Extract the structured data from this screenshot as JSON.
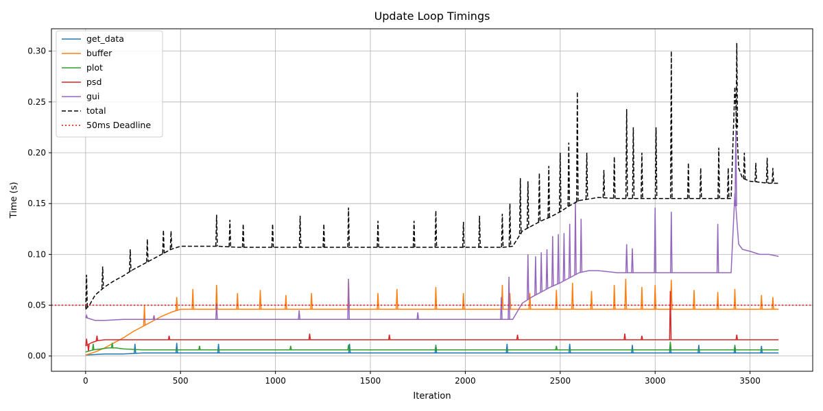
{
  "chart_data": {
    "type": "line",
    "title": "Update Loop Timings",
    "xlabel": "Iteration",
    "ylabel": "Time (s)",
    "xlim": [
      -180,
      3830
    ],
    "ylim": [
      -0.015,
      0.322
    ],
    "xticks": [
      0,
      500,
      1000,
      1500,
      2000,
      2500,
      3000,
      3500
    ],
    "xtick_labels": [
      "0",
      "500",
      "1000",
      "1500",
      "2000",
      "2500",
      "3000",
      "3500"
    ],
    "yticks": [
      0.0,
      0.05,
      0.1,
      0.15,
      0.2,
      0.25,
      0.3
    ],
    "ytick_labels": [
      "0.00",
      "0.05",
      "0.10",
      "0.15",
      "0.20",
      "0.25",
      "0.30"
    ],
    "grid": true,
    "legend_position": "top-left",
    "series": [
      {
        "name": "get_data",
        "color": "#1f77b4",
        "dash": "solid",
        "x": [
          0,
          100,
          200,
          300,
          400,
          500,
          700,
          900,
          1100,
          1300,
          1500,
          1700,
          1900,
          2100,
          2300,
          2500,
          2700,
          2900,
          3100,
          3300,
          3500,
          3650
        ],
        "y": [
          0.001,
          0.002,
          0.002,
          0.003,
          0.003,
          0.003,
          0.003,
          0.003,
          0.003,
          0.003,
          0.003,
          0.003,
          0.003,
          0.003,
          0.003,
          0.003,
          0.003,
          0.003,
          0.003,
          0.003,
          0.003,
          0.003
        ],
        "spikes": [
          [
            260,
            0.012
          ],
          [
            480,
            0.013
          ],
          [
            700,
            0.012
          ],
          [
            1390,
            0.012
          ],
          [
            1845,
            0.011
          ],
          [
            2220,
            0.012
          ],
          [
            2550,
            0.012
          ],
          [
            2880,
            0.011
          ],
          [
            3080,
            0.012
          ],
          [
            3230,
            0.011
          ],
          [
            3420,
            0.011
          ],
          [
            3560,
            0.01
          ]
        ]
      },
      {
        "name": "buffer",
        "color": "#ff7f0e",
        "dash": "solid",
        "x": [
          0,
          50,
          100,
          150,
          200,
          250,
          300,
          350,
          400,
          450,
          500,
          600,
          700,
          800,
          900,
          1000,
          1100,
          1200,
          1300,
          1400,
          1500,
          1600,
          1700,
          1800,
          1900,
          2000,
          2100,
          2200,
          2300,
          2400,
          2500,
          2600,
          2700,
          2800,
          2900,
          3000,
          3100,
          3200,
          3300,
          3400,
          3500,
          3600,
          3650
        ],
        "y": [
          0.001,
          0.004,
          0.008,
          0.013,
          0.018,
          0.024,
          0.029,
          0.034,
          0.039,
          0.043,
          0.046,
          0.046,
          0.046,
          0.046,
          0.046,
          0.046,
          0.046,
          0.046,
          0.046,
          0.046,
          0.046,
          0.046,
          0.046,
          0.046,
          0.046,
          0.046,
          0.046,
          0.046,
          0.046,
          0.046,
          0.046,
          0.046,
          0.046,
          0.046,
          0.046,
          0.046,
          0.046,
          0.046,
          0.046,
          0.046,
          0.046,
          0.046,
          0.046
        ],
        "spikes": [
          [
            310,
            0.05
          ],
          [
            480,
            0.058
          ],
          [
            565,
            0.066
          ],
          [
            690,
            0.07
          ],
          [
            800,
            0.062
          ],
          [
            920,
            0.065
          ],
          [
            1055,
            0.06
          ],
          [
            1190,
            0.062
          ],
          [
            1385,
            0.076
          ],
          [
            1540,
            0.062
          ],
          [
            1640,
            0.066
          ],
          [
            1845,
            0.068
          ],
          [
            1990,
            0.062
          ],
          [
            2195,
            0.07
          ],
          [
            2235,
            0.062
          ],
          [
            2340,
            0.062
          ],
          [
            2480,
            0.065
          ],
          [
            2565,
            0.072
          ],
          [
            2665,
            0.064
          ],
          [
            2785,
            0.07
          ],
          [
            2845,
            0.076
          ],
          [
            2930,
            0.068
          ],
          [
            3000,
            0.07
          ],
          [
            3085,
            0.075
          ],
          [
            3205,
            0.065
          ],
          [
            3330,
            0.063
          ],
          [
            3420,
            0.066
          ],
          [
            3560,
            0.06
          ],
          [
            3620,
            0.058
          ]
        ]
      },
      {
        "name": "plot",
        "color": "#2ca02c",
        "dash": "solid",
        "x": [
          0,
          40,
          80,
          120,
          160,
          200,
          300,
          400,
          600,
          800,
          1000,
          1200,
          1400,
          1600,
          1800,
          2000,
          2200,
          2400,
          2600,
          2800,
          3000,
          3200,
          3400,
          3650
        ],
        "y": [
          0.004,
          0.006,
          0.007,
          0.008,
          0.008,
          0.007,
          0.006,
          0.006,
          0.006,
          0.006,
          0.006,
          0.006,
          0.006,
          0.006,
          0.006,
          0.006,
          0.006,
          0.006,
          0.006,
          0.006,
          0.006,
          0.006,
          0.006,
          0.006
        ],
        "spikes": [
          [
            40,
            0.012
          ],
          [
            140,
            0.013
          ],
          [
            600,
            0.01
          ],
          [
            1080,
            0.01
          ],
          [
            1385,
            0.011
          ],
          [
            1845,
            0.01
          ],
          [
            2480,
            0.01
          ],
          [
            3080,
            0.014
          ],
          [
            3420,
            0.01
          ]
        ]
      },
      {
        "name": "psd",
        "color": "#d62728",
        "dash": "solid",
        "x": [
          0,
          30,
          60,
          100,
          150,
          200,
          400,
          600,
          800,
          1000,
          1200,
          1400,
          1600,
          1800,
          2000,
          2200,
          2400,
          2600,
          2800,
          3000,
          3200,
          3400,
          3650
        ],
        "y": [
          0.01,
          0.013,
          0.015,
          0.016,
          0.016,
          0.016,
          0.016,
          0.016,
          0.016,
          0.016,
          0.016,
          0.016,
          0.016,
          0.016,
          0.016,
          0.016,
          0.016,
          0.016,
          0.016,
          0.016,
          0.016,
          0.016,
          0.016
        ],
        "spikes": [
          [
            5,
            0.017
          ],
          [
            15,
            0.005
          ],
          [
            60,
            0.02
          ],
          [
            440,
            0.02
          ],
          [
            1180,
            0.022
          ],
          [
            1600,
            0.021
          ],
          [
            2275,
            0.021
          ],
          [
            2840,
            0.022
          ],
          [
            2930,
            0.02
          ],
          [
            3080,
            0.064
          ],
          [
            3430,
            0.021
          ]
        ]
      },
      {
        "name": "gui",
        "color": "#9467bd",
        "dash": "solid",
        "x": [
          0,
          50,
          100,
          200,
          300,
          400,
          500,
          700,
          900,
          1100,
          1300,
          1500,
          1700,
          1900,
          2100,
          2250,
          2300,
          2350,
          2400,
          2450,
          2500,
          2550,
          2600,
          2650,
          2700,
          2800,
          2900,
          3000,
          3100,
          3200,
          3300,
          3400,
          3420,
          3440,
          3460,
          3500,
          3550,
          3600,
          3650
        ],
        "y": [
          0.038,
          0.035,
          0.035,
          0.036,
          0.036,
          0.036,
          0.036,
          0.036,
          0.036,
          0.036,
          0.036,
          0.036,
          0.036,
          0.036,
          0.036,
          0.036,
          0.052,
          0.058,
          0.063,
          0.068,
          0.072,
          0.077,
          0.082,
          0.084,
          0.084,
          0.082,
          0.082,
          0.082,
          0.082,
          0.082,
          0.082,
          0.082,
          0.16,
          0.11,
          0.105,
          0.103,
          0.1,
          0.1,
          0.098
        ],
        "spikes": [
          [
            5,
            0.04
          ],
          [
            360,
            0.04
          ],
          [
            690,
            0.052
          ],
          [
            1125,
            0.045
          ],
          [
            1385,
            0.076
          ],
          [
            1750,
            0.043
          ],
          [
            2190,
            0.058
          ],
          [
            2230,
            0.078
          ],
          [
            2330,
            0.1
          ],
          [
            2370,
            0.098
          ],
          [
            2400,
            0.102
          ],
          [
            2430,
            0.105
          ],
          [
            2460,
            0.118
          ],
          [
            2490,
            0.12
          ],
          [
            2520,
            0.121
          ],
          [
            2550,
            0.13
          ],
          [
            2580,
            0.152
          ],
          [
            2610,
            0.135
          ],
          [
            2850,
            0.11
          ],
          [
            2880,
            0.106
          ],
          [
            3000,
            0.146
          ],
          [
            3085,
            0.142
          ],
          [
            3330,
            0.13
          ],
          [
            3425,
            0.222
          ]
        ]
      },
      {
        "name": "total",
        "color": "#000000",
        "dash": "dashed",
        "x": [
          0,
          20,
          50,
          100,
          150,
          200,
          250,
          300,
          350,
          400,
          450,
          500,
          600,
          700,
          800,
          900,
          1000,
          1100,
          1200,
          1300,
          1400,
          1500,
          1600,
          1700,
          1800,
          1900,
          2000,
          2100,
          2200,
          2250,
          2300,
          2350,
          2400,
          2450,
          2500,
          2550,
          2600,
          2700,
          2800,
          2900,
          3000,
          3100,
          3200,
          3300,
          3400,
          3420,
          3440,
          3460,
          3500,
          3550,
          3600,
          3650
        ],
        "y": [
          0.046,
          0.05,
          0.06,
          0.068,
          0.074,
          0.079,
          0.085,
          0.09,
          0.095,
          0.1,
          0.105,
          0.108,
          0.108,
          0.108,
          0.107,
          0.107,
          0.107,
          0.107,
          0.107,
          0.107,
          0.107,
          0.107,
          0.107,
          0.107,
          0.107,
          0.107,
          0.107,
          0.107,
          0.107,
          0.108,
          0.123,
          0.128,
          0.133,
          0.137,
          0.142,
          0.148,
          0.153,
          0.156,
          0.155,
          0.155,
          0.155,
          0.155,
          0.155,
          0.155,
          0.155,
          0.265,
          0.185,
          0.175,
          0.172,
          0.171,
          0.17,
          0.17
        ],
        "spikes": [
          [
            5,
            0.08
          ],
          [
            90,
            0.088
          ],
          [
            235,
            0.105
          ],
          [
            325,
            0.115
          ],
          [
            410,
            0.124
          ],
          [
            450,
            0.123
          ],
          [
            690,
            0.139
          ],
          [
            760,
            0.134
          ],
          [
            830,
            0.13
          ],
          [
            985,
            0.13
          ],
          [
            1130,
            0.138
          ],
          [
            1255,
            0.13
          ],
          [
            1385,
            0.146
          ],
          [
            1540,
            0.133
          ],
          [
            1730,
            0.133
          ],
          [
            1845,
            0.143
          ],
          [
            1990,
            0.132
          ],
          [
            2075,
            0.138
          ],
          [
            2195,
            0.14
          ],
          [
            2235,
            0.15
          ],
          [
            2290,
            0.175
          ],
          [
            2330,
            0.172
          ],
          [
            2390,
            0.18
          ],
          [
            2440,
            0.187
          ],
          [
            2500,
            0.2
          ],
          [
            2545,
            0.21
          ],
          [
            2590,
            0.26
          ],
          [
            2640,
            0.2
          ],
          [
            2730,
            0.183
          ],
          [
            2785,
            0.196
          ],
          [
            2850,
            0.243
          ],
          [
            2885,
            0.225
          ],
          [
            2930,
            0.2
          ],
          [
            3005,
            0.225
          ],
          [
            3085,
            0.3
          ],
          [
            3175,
            0.19
          ],
          [
            3240,
            0.185
          ],
          [
            3335,
            0.205
          ],
          [
            3385,
            0.185
          ],
          [
            3430,
            0.308
          ],
          [
            3470,
            0.2
          ],
          [
            3530,
            0.19
          ],
          [
            3590,
            0.195
          ],
          [
            3620,
            0.185
          ]
        ]
      },
      {
        "name": "50ms Deadline",
        "color": "#ff0000",
        "dash": "dotted",
        "hline": 0.05
      }
    ]
  }
}
